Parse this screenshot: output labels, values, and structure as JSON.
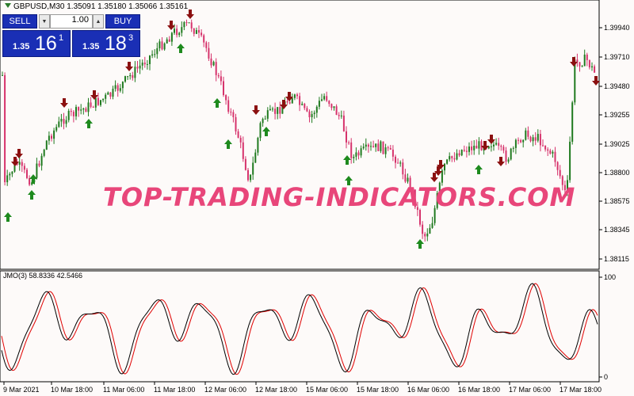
{
  "chart": {
    "symbol_line": "GBPUSD,M30  1.35091 1.35180 1.35066 1.35161",
    "indicator_line": "JMO(3) 58.8336 42.5466",
    "watermark": "TOP-TRADING-INDICATORS.COM",
    "price_labels": [
      "1.39940",
      "1.39710",
      "1.39480",
      "1.39255",
      "1.39025",
      "1.38800",
      "1.38575",
      "1.38345",
      "1.38115"
    ],
    "osc_labels": [
      "100",
      "0"
    ],
    "time_labels": [
      "9 Mar 2021",
      "10 Mar 18:00",
      "11 Mar 06:00",
      "11 Mar 18:00",
      "12 Mar 06:00",
      "12 Mar 18:00",
      "15 Mar 06:00",
      "15 Mar 18:00",
      "16 Mar 06:00",
      "16 Mar 18:00",
      "17 Mar 06:00",
      "17 Mar 18:00"
    ],
    "colors": {
      "bull": "#1f7a1f",
      "bear": "#d6336c",
      "arrow_up": "#1e8a1e",
      "arrow_down": "#8b1010",
      "osc_black": "#000000",
      "osc_red": "#e00000",
      "panel_blue": "#1a2fb5",
      "watermark": "#e8467a"
    }
  },
  "trade_panel": {
    "sell_label": "SELL",
    "buy_label": "BUY",
    "lot_value": "1.00",
    "sell_price_small": "1.35",
    "sell_price_big": "16",
    "sell_price_sup": "1",
    "buy_price_small": "1.35",
    "buy_price_big": "18",
    "buy_price_sup": "3"
  }
}
